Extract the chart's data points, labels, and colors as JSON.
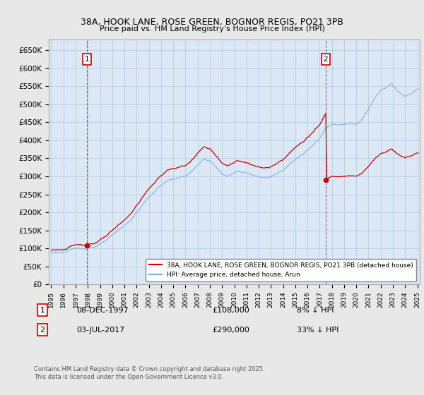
{
  "title": "38A, HOOK LANE, ROSE GREEN, BOGNOR REGIS, PO21 3PB",
  "subtitle": "Price paid vs. HM Land Registry's House Price Index (HPI)",
  "line1_label": "38A, HOOK LANE, ROSE GREEN, BOGNOR REGIS, PO21 3PB (detached house)",
  "line1_color": "#cc0000",
  "line2_label": "HPI: Average price, detached house, Arun",
  "line2_color": "#7aade0",
  "point1_label": "1",
  "point1_date": "08-DEC-1997",
  "point1_price": 108000,
  "point1_pct": "8% ↓ HPI",
  "point1_year": 1997.917,
  "point2_label": "2",
  "point2_date": "03-JUL-2017",
  "point2_price": 290000,
  "point2_pct": "33% ↓ HPI",
  "point2_year": 2017.5,
  "ylim": [
    0,
    680000
  ],
  "yticks": [
    0,
    50000,
    100000,
    150000,
    200000,
    250000,
    300000,
    350000,
    400000,
    450000,
    500000,
    550000,
    600000,
    650000
  ],
  "xlim_start": 1995,
  "xlim_end": 2025,
  "footer": "Contains HM Land Registry data © Crown copyright and database right 2025.\nThis data is licensed under the Open Government Licence v3.0.",
  "bg_color": "#e8e8e8",
  "plot_bg_color": "#dce8f5",
  "grid_color": "#b0c8e0"
}
